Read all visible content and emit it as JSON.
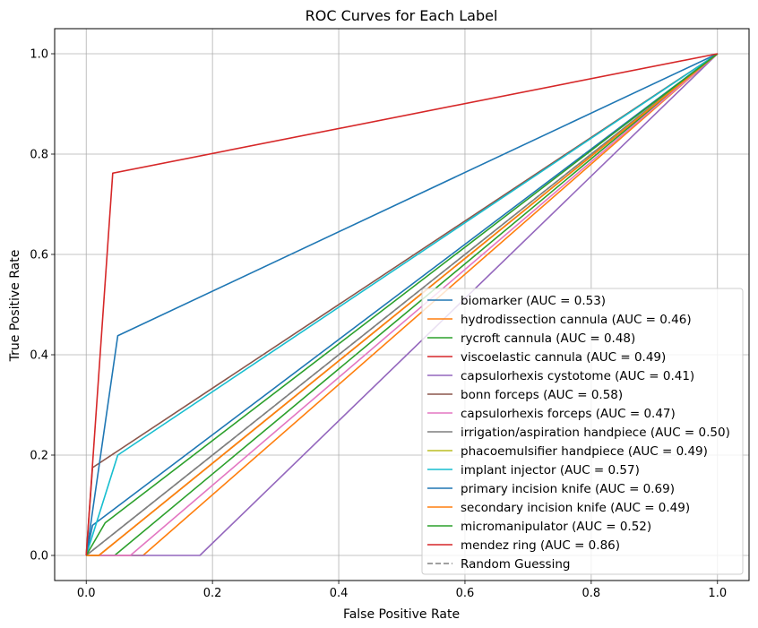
{
  "chart_data": {
    "type": "line",
    "title": "ROC Curves for Each Label",
    "xlabel": "False Positive Rate",
    "ylabel": "True Positive Rate",
    "xlim": [
      -0.05,
      1.05
    ],
    "ylim": [
      -0.05,
      1.05
    ],
    "xticks": [
      0.0,
      0.2,
      0.4,
      0.6,
      0.8,
      1.0
    ],
    "yticks": [
      0.0,
      0.2,
      0.4,
      0.6,
      0.8,
      1.0
    ],
    "xtick_labels": [
      "0.0",
      "0.2",
      "0.4",
      "0.6",
      "0.8",
      "1.0"
    ],
    "ytick_labels": [
      "0.0",
      "0.2",
      "0.4",
      "0.6",
      "0.8",
      "1.0"
    ],
    "grid": true,
    "legend_position": "lower-right",
    "series": [
      {
        "name": "biomarker (AUC = 0.53)",
        "color": "#1f77b4",
        "style": "solid",
        "x": [
          0.0,
          0.01,
          1.0
        ],
        "y": [
          0.0,
          0.06,
          1.0
        ]
      },
      {
        "name": "hydrodissection cannula (AUC = 0.46)",
        "color": "#ff7f0e",
        "style": "solid",
        "x": [
          0.0,
          0.09,
          1.0
        ],
        "y": [
          0.0,
          0.0,
          1.0
        ]
      },
      {
        "name": "rycroft cannula (AUC = 0.48)",
        "color": "#2ca02c",
        "style": "solid",
        "x": [
          0.0,
          0.045,
          1.0
        ],
        "y": [
          0.0,
          0.0,
          1.0
        ]
      },
      {
        "name": "viscoelastic cannula (AUC = 0.49)",
        "color": "#d62728",
        "style": "solid",
        "x": [
          0.0,
          0.02,
          1.0
        ],
        "y": [
          0.0,
          0.0,
          1.0
        ]
      },
      {
        "name": "capsulorhexis cystotome (AUC = 0.41)",
        "color": "#9467bd",
        "style": "solid",
        "x": [
          0.0,
          0.18,
          1.0
        ],
        "y": [
          0.0,
          0.0,
          1.0
        ]
      },
      {
        "name": "bonn forceps (AUC = 0.58)",
        "color": "#8c564b",
        "style": "solid",
        "x": [
          0.0,
          0.01,
          1.0
        ],
        "y": [
          0.0,
          0.175,
          1.0
        ]
      },
      {
        "name": "capsulorhexis forceps (AUC = 0.47)",
        "color": "#e377c2",
        "style": "solid",
        "x": [
          0.0,
          0.07,
          1.0
        ],
        "y": [
          0.0,
          0.0,
          1.0
        ]
      },
      {
        "name": "irrigation/aspiration handpiece (AUC = 0.50)",
        "color": "#7f7f7f",
        "style": "solid",
        "x": [
          0.0,
          1.0
        ],
        "y": [
          0.0,
          1.0
        ]
      },
      {
        "name": "phacoemulsifier handpiece (AUC = 0.49)",
        "color": "#bcbd22",
        "style": "solid",
        "x": [
          0.0,
          0.02,
          1.0
        ],
        "y": [
          0.0,
          0.0,
          1.0
        ]
      },
      {
        "name": "implant injector (AUC = 0.57)",
        "color": "#17becf",
        "style": "solid",
        "x": [
          0.0,
          0.05,
          1.0
        ],
        "y": [
          0.0,
          0.2,
          1.0
        ]
      },
      {
        "name": "primary incision knife (AUC = 0.69)",
        "color": "#1f77b4",
        "style": "solid",
        "x": [
          0.0,
          0.05,
          1.0
        ],
        "y": [
          0.0,
          0.438,
          1.0
        ]
      },
      {
        "name": "secondary incision knife (AUC = 0.49)",
        "color": "#ff7f0e",
        "style": "solid",
        "x": [
          0.0,
          0.02,
          1.0
        ],
        "y": [
          0.0,
          0.0,
          1.0
        ]
      },
      {
        "name": "micromanipulator (AUC = 0.52)",
        "color": "#2ca02c",
        "style": "solid",
        "x": [
          0.0,
          0.03,
          1.0
        ],
        "y": [
          0.0,
          0.065,
          1.0
        ]
      },
      {
        "name": "mendez ring (AUC = 0.86)",
        "color": "#d62728",
        "style": "solid",
        "x": [
          0.0,
          0.042,
          1.0
        ],
        "y": [
          0.0,
          0.762,
          1.0
        ]
      },
      {
        "name": "Random Guessing",
        "color": "#808080",
        "style": "dashed",
        "x": [
          0.0,
          1.0
        ],
        "y": [
          0.0,
          1.0
        ]
      }
    ]
  }
}
